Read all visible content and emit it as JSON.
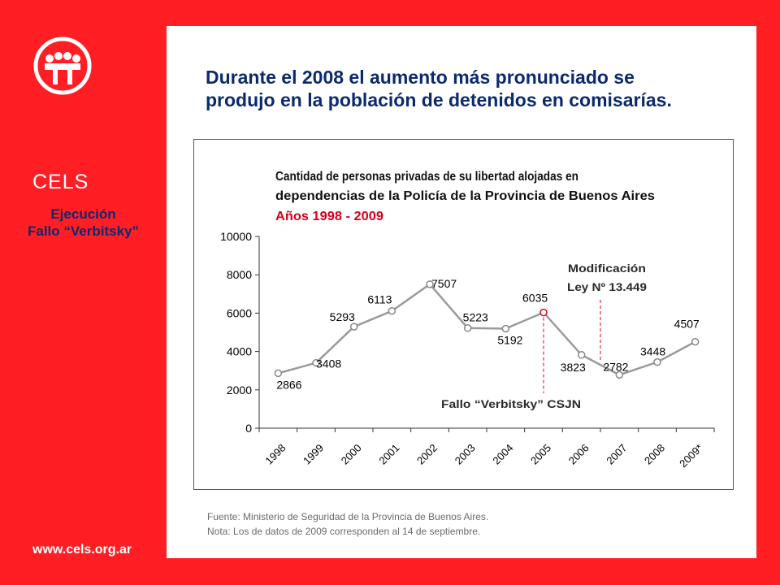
{
  "sidebar": {
    "brand": "CELS",
    "subtitle_line1": "Ejecución",
    "subtitle_line2": "Fallo “Verbitsky”",
    "website": "www.cels.org.ar"
  },
  "headline": {
    "line1": "Durante el 2008 el aumento más pronunciado se",
    "line2": "produjo en la población de detenidos en comisarías."
  },
  "chart_data": {
    "type": "line",
    "title_line1": "Cantidad de personas privadas de su libertad alojadas en",
    "title_line2": "dependencias de la Policía de la Provincia de Buenos Aires",
    "subtitle": "Años 1998 - 2009",
    "categories": [
      "1998",
      "1999",
      "2000",
      "2001",
      "2002",
      "2003",
      "2004",
      "2005",
      "2006",
      "2007",
      "2008",
      "2009*"
    ],
    "points": [
      {
        "year": "1998",
        "value": 2866,
        "label": "2866"
      },
      {
        "year": "1999",
        "value": 3408,
        "label": "3408"
      },
      {
        "year": "2000",
        "value": 5293,
        "label": "5293"
      },
      {
        "year": "2001",
        "value": 6113,
        "label": "6113"
      },
      {
        "year": "2002",
        "value": 7507,
        "label": "7507"
      },
      {
        "year": "2003",
        "value": 5223,
        "label": "5223"
      },
      {
        "year": "2004",
        "value": 5192,
        "label": "5192"
      },
      {
        "year": "2005",
        "value": 6035,
        "label": "6035"
      },
      {
        "year": "2006",
        "value": 3823,
        "label": "3823"
      },
      {
        "year": "2007",
        "value": 2782,
        "label": "2782"
      },
      {
        "year": "2008",
        "value": 3448,
        "label": "3448"
      },
      {
        "year": "2009*",
        "value": 4507,
        "label": "4507"
      }
    ],
    "highlight_index": 7,
    "yticks": [
      "0",
      "2000",
      "4000",
      "6000",
      "8000",
      "10000"
    ],
    "ylim": [
      0,
      10000
    ],
    "grid": false,
    "line_color": "#9a9a9a",
    "highlight_color": "#d9001b",
    "annotations": [
      {
        "text": "Fallo “Verbitsky” CSJN",
        "color": "#2a2a2a"
      },
      {
        "text_line1": "Modificación",
        "text_line2": "Ley Nº 13.449",
        "color": "#2a2a2a"
      }
    ]
  },
  "footnotes": {
    "source": "Fuente: Ministerio de Seguridad de la Provincia de Buenos Aires.",
    "note": "Nota: Los de datos de 2009 corresponden al 14 de septiembre."
  }
}
